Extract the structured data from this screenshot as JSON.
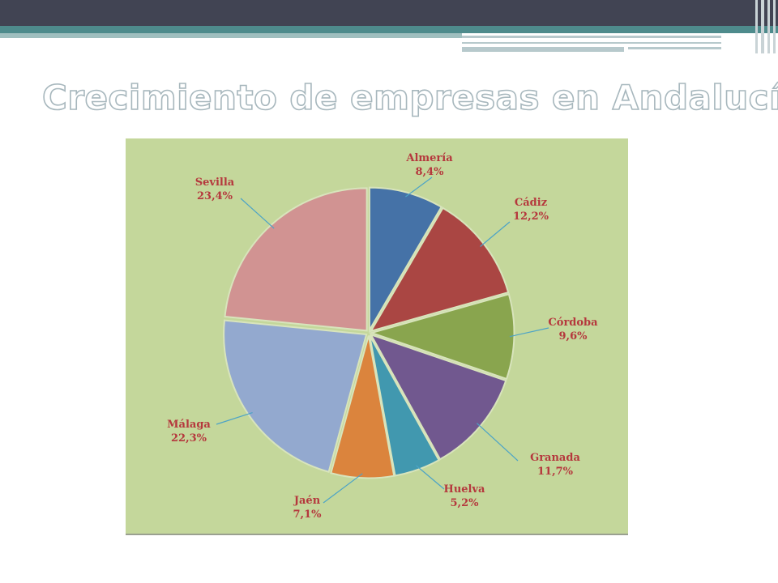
{
  "slide": {
    "title": "Crecimiento de empresas en Andalucía"
  },
  "colors": {
    "top_bar": "#414453",
    "accent_teal": "#4e8b8c",
    "chart_background": "#c4d79b",
    "label_text": "#b5383d",
    "leader_line": "#4ba3c7"
  },
  "chart_data": {
    "type": "pie",
    "title": "",
    "legend": "none",
    "slices": [
      {
        "label": "Almería",
        "value": 8.4,
        "display": "8,4%",
        "color": "#4572a7"
      },
      {
        "label": "Cádiz",
        "value": 12.2,
        "display": "12,2%",
        "color": "#aa4643"
      },
      {
        "label": "Córdoba",
        "value": 9.6,
        "display": "9,6%",
        "color": "#89a54e"
      },
      {
        "label": "Granada",
        "value": 11.7,
        "display": "11,7%",
        "color": "#71588f"
      },
      {
        "label": "Huelva",
        "value": 5.2,
        "display": "5,2%",
        "color": "#4198af"
      },
      {
        "label": "Jaén",
        "value": 7.1,
        "display": "7,1%",
        "color": "#db843d"
      },
      {
        "label": "Málaga",
        "value": 22.3,
        "display": "22,3%",
        "color": "#93a9cf"
      },
      {
        "label": "Sevilla",
        "value": 23.4,
        "display": "23,4%",
        "color": "#d19392"
      }
    ]
  }
}
